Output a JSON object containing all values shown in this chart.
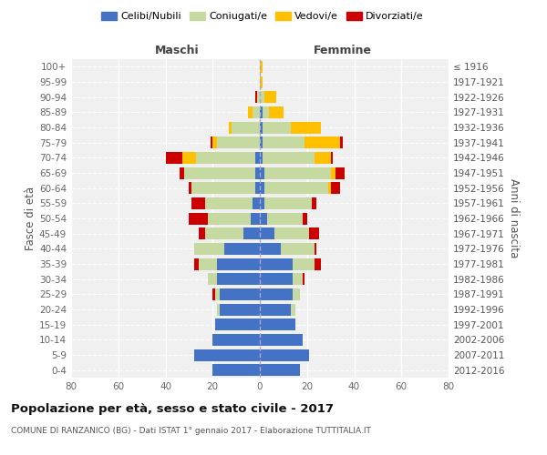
{
  "age_groups": [
    "0-4",
    "5-9",
    "10-14",
    "15-19",
    "20-24",
    "25-29",
    "30-34",
    "35-39",
    "40-44",
    "45-49",
    "50-54",
    "55-59",
    "60-64",
    "65-69",
    "70-74",
    "75-79",
    "80-84",
    "85-89",
    "90-94",
    "95-99",
    "100+"
  ],
  "birth_years": [
    "2012-2016",
    "2007-2011",
    "2002-2006",
    "1997-2001",
    "1992-1996",
    "1987-1991",
    "1982-1986",
    "1977-1981",
    "1972-1976",
    "1967-1971",
    "1962-1966",
    "1957-1961",
    "1952-1956",
    "1947-1951",
    "1942-1946",
    "1937-1941",
    "1932-1936",
    "1927-1931",
    "1922-1926",
    "1917-1921",
    "≤ 1916"
  ],
  "males": {
    "celibi": [
      20,
      28,
      20,
      19,
      17,
      17,
      18,
      18,
      15,
      7,
      4,
      3,
      2,
      2,
      2,
      0,
      0,
      0,
      0,
      0,
      0
    ],
    "coniugati": [
      0,
      0,
      0,
      0,
      1,
      2,
      4,
      8,
      13,
      16,
      18,
      20,
      27,
      30,
      25,
      18,
      12,
      3,
      1,
      0,
      0
    ],
    "vedovi": [
      0,
      0,
      0,
      0,
      0,
      0,
      0,
      0,
      0,
      0,
      0,
      0,
      0,
      0,
      6,
      2,
      1,
      2,
      0,
      0,
      0
    ],
    "divorziati": [
      0,
      0,
      0,
      0,
      0,
      1,
      0,
      2,
      0,
      3,
      8,
      6,
      1,
      2,
      7,
      1,
      0,
      0,
      1,
      0,
      0
    ]
  },
  "females": {
    "nubili": [
      17,
      21,
      18,
      15,
      13,
      14,
      14,
      14,
      9,
      6,
      3,
      2,
      2,
      2,
      1,
      1,
      1,
      1,
      0,
      0,
      0
    ],
    "coniugate": [
      0,
      0,
      0,
      0,
      2,
      3,
      4,
      9,
      14,
      15,
      15,
      20,
      27,
      28,
      22,
      18,
      12,
      3,
      2,
      0,
      0
    ],
    "vedove": [
      0,
      0,
      0,
      0,
      0,
      0,
      0,
      0,
      0,
      0,
      0,
      0,
      1,
      2,
      7,
      15,
      13,
      6,
      5,
      1,
      1
    ],
    "divorziate": [
      0,
      0,
      0,
      0,
      0,
      0,
      1,
      3,
      1,
      4,
      2,
      2,
      4,
      4,
      1,
      1,
      0,
      0,
      0,
      0,
      0
    ]
  },
  "colors": {
    "celibi": "#4472c4",
    "coniugati": "#c5d9a0",
    "vedovi": "#ffc000",
    "divorziati": "#cc0000"
  },
  "xlim": 80,
  "title": "Popolazione per età, sesso e stato civile - 2017",
  "subtitle": "COMUNE DI RANZANICO (BG) - Dati ISTAT 1° gennaio 2017 - Elaborazione TUTTITALIA.IT",
  "ylabel_left": "Fasce di età",
  "ylabel_right": "Anni di nascita",
  "legend_labels": [
    "Celibi/Nubili",
    "Coniugati/e",
    "Vedovi/e",
    "Divorziati/e"
  ],
  "maschi_label": "Maschi",
  "femmine_label": "Femmine",
  "bg_color": "#f0f0f0"
}
